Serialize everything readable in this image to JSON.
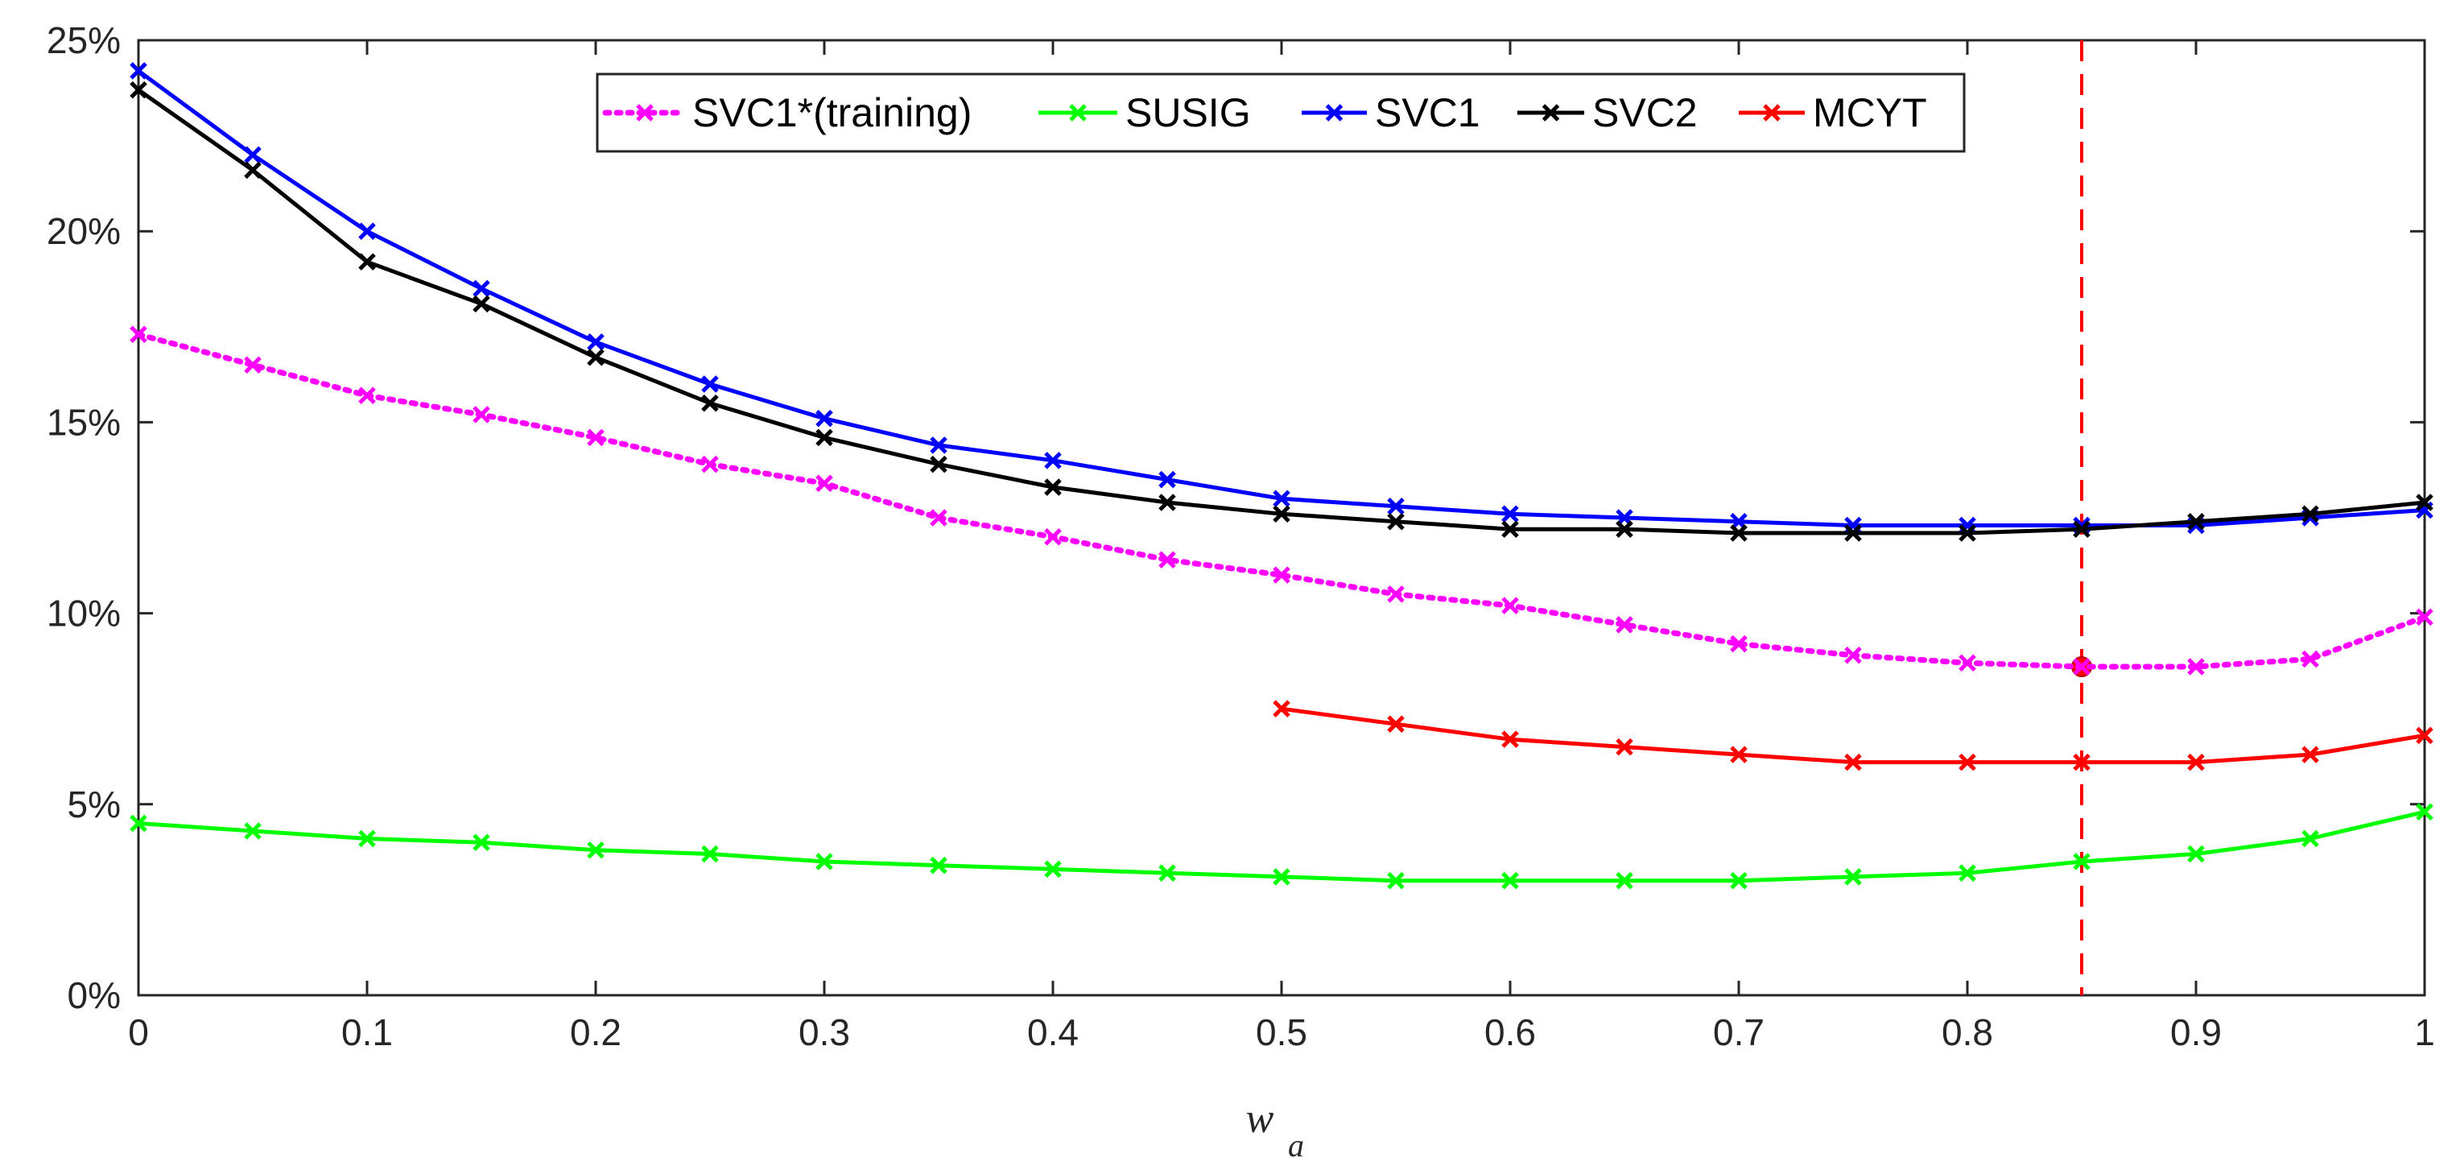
{
  "chart_data": {
    "type": "line",
    "title": "",
    "xlabel": {
      "main": "w",
      "subscript": "a"
    },
    "ylabel": "",
    "xlim": [
      0,
      1
    ],
    "ylim": [
      0,
      25
    ],
    "x_ticks": [
      0,
      0.1,
      0.2,
      0.3,
      0.4,
      0.5,
      0.6,
      0.7,
      0.8,
      0.9,
      1
    ],
    "x_tick_labels": [
      "0",
      "0.1",
      "0.2",
      "0.3",
      "0.4",
      "0.5",
      "0.6",
      "0.7",
      "0.8",
      "0.9",
      "1"
    ],
    "y_ticks": [
      0,
      5,
      10,
      15,
      20,
      25
    ],
    "y_tick_labels": [
      "0%",
      "5%",
      "10%",
      "15%",
      "20%",
      "25%"
    ],
    "grid": false,
    "legend_position": "top-center",
    "series": [
      {
        "name": "SVC1*(training)",
        "color": "#ff00ff",
        "line_style": "dotted",
        "marker": "x",
        "x": [
          0,
          0.05,
          0.1,
          0.15,
          0.2,
          0.25,
          0.3,
          0.35,
          0.4,
          0.45,
          0.5,
          0.55,
          0.6,
          0.65,
          0.7,
          0.75,
          0.8,
          0.85,
          0.9,
          0.95,
          1
        ],
        "values": [
          17.3,
          16.5,
          15.7,
          15.2,
          14.6,
          13.9,
          13.4,
          12.5,
          12.0,
          11.4,
          11.0,
          10.5,
          10.2,
          9.7,
          9.2,
          8.9,
          8.7,
          8.6,
          8.6,
          8.8,
          9.9
        ]
      },
      {
        "name": "SUSIG",
        "color": "#00ff00",
        "line_style": "solid",
        "marker": "x",
        "x": [
          0,
          0.05,
          0.1,
          0.15,
          0.2,
          0.25,
          0.3,
          0.35,
          0.4,
          0.45,
          0.5,
          0.55,
          0.6,
          0.65,
          0.7,
          0.75,
          0.8,
          0.85,
          0.9,
          0.95,
          1
        ],
        "values": [
          4.5,
          4.3,
          4.1,
          4.0,
          3.8,
          3.7,
          3.5,
          3.4,
          3.3,
          3.2,
          3.1,
          3.0,
          3.0,
          3.0,
          3.0,
          3.1,
          3.2,
          3.5,
          3.7,
          4.1,
          4.8
        ]
      },
      {
        "name": "SVC1",
        "color": "#0000ff",
        "line_style": "solid",
        "marker": "x",
        "x": [
          0,
          0.05,
          0.1,
          0.15,
          0.2,
          0.25,
          0.3,
          0.35,
          0.4,
          0.45,
          0.5,
          0.55,
          0.6,
          0.65,
          0.7,
          0.75,
          0.8,
          0.85,
          0.9,
          0.95,
          1
        ],
        "values": [
          24.2,
          22.0,
          20.0,
          18.5,
          17.1,
          16.0,
          15.1,
          14.4,
          14.0,
          13.5,
          13.0,
          12.8,
          12.6,
          12.5,
          12.4,
          12.3,
          12.3,
          12.3,
          12.3,
          12.5,
          12.7
        ]
      },
      {
        "name": "SVC2",
        "color": "#000000",
        "line_style": "solid",
        "marker": "x",
        "x": [
          0,
          0.05,
          0.1,
          0.15,
          0.2,
          0.25,
          0.3,
          0.35,
          0.4,
          0.45,
          0.5,
          0.55,
          0.6,
          0.65,
          0.7,
          0.75,
          0.8,
          0.85,
          0.9,
          0.95,
          1
        ],
        "values": [
          23.7,
          21.6,
          19.2,
          18.1,
          16.7,
          15.5,
          14.6,
          13.9,
          13.3,
          12.9,
          12.6,
          12.4,
          12.2,
          12.2,
          12.1,
          12.1,
          12.1,
          12.2,
          12.4,
          12.6,
          12.9
        ]
      },
      {
        "name": "MCYT",
        "color": "#ff0000",
        "line_style": "solid",
        "marker": "x",
        "x": [
          0.5,
          0.55,
          0.6,
          0.65,
          0.7,
          0.75,
          0.8,
          0.85,
          0.9,
          0.95,
          1
        ],
        "values": [
          7.5,
          7.1,
          6.7,
          6.5,
          6.3,
          6.1,
          6.1,
          6.1,
          6.1,
          6.3,
          6.8
        ]
      }
    ],
    "annotations": [
      {
        "type": "vertical-dashed-line",
        "x": 0.85,
        "color": "#ff0000"
      },
      {
        "type": "highlight-point",
        "x": 0.85,
        "y": 8.6,
        "color": "#ff0000"
      }
    ]
  }
}
